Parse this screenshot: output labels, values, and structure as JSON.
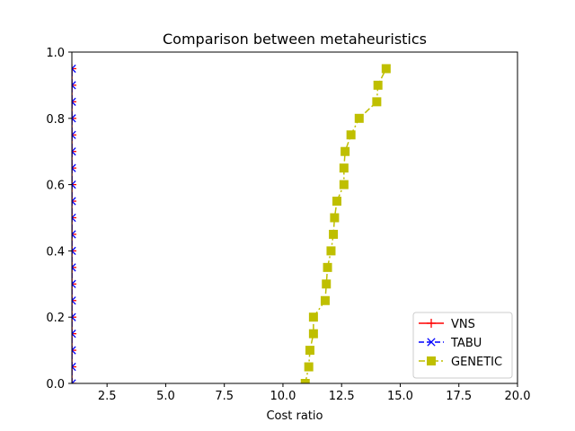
{
  "chart_data": {
    "type": "line",
    "title": "Comparison between metaheuristics",
    "xlabel": "Cost ratio",
    "ylabel": "",
    "xlim": [
      1,
      20
    ],
    "ylim": [
      0,
      1
    ],
    "xticks": [
      2.5,
      5.0,
      7.5,
      10.0,
      12.5,
      15.0,
      17.5,
      20.0
    ],
    "xtick_labels": [
      "2.5",
      "5.0",
      "7.5",
      "10.0",
      "12.5",
      "15.0",
      "17.5",
      "20.0"
    ],
    "yticks": [
      0.0,
      0.2,
      0.4,
      0.6,
      0.8,
      1.0
    ],
    "ytick_labels": [
      "0.0",
      "0.2",
      "0.4",
      "0.6",
      "0.8",
      "1.0"
    ],
    "grid": false,
    "legend_position": "lower right",
    "series": [
      {
        "name": "VNS",
        "color": "#ff0000",
        "marker": "plus",
        "line_style": "solid",
        "x": [
          1,
          1,
          1,
          1,
          1,
          1,
          1,
          1,
          1,
          1,
          1,
          1,
          1,
          1,
          1,
          1,
          1,
          1,
          1,
          1
        ],
        "y": [
          0.0,
          0.05,
          0.1,
          0.15,
          0.2,
          0.25,
          0.3,
          0.35,
          0.4,
          0.45,
          0.5,
          0.55,
          0.6,
          0.65,
          0.7,
          0.75,
          0.8,
          0.85,
          0.9,
          0.95
        ]
      },
      {
        "name": "TABU",
        "color": "#0000ff",
        "marker": "x",
        "line_style": "dashed",
        "x": [
          1,
          1,
          1,
          1,
          1,
          1,
          1,
          1,
          1,
          1,
          1,
          1,
          1,
          1,
          1,
          1,
          1,
          1,
          1,
          1
        ],
        "y": [
          0.0,
          0.05,
          0.1,
          0.15,
          0.2,
          0.25,
          0.3,
          0.35,
          0.4,
          0.45,
          0.5,
          0.55,
          0.6,
          0.65,
          0.7,
          0.75,
          0.8,
          0.85,
          0.9,
          0.95
        ]
      },
      {
        "name": "GENETIC",
        "color": "#bfbf00",
        "marker": "square",
        "line_style": "dashdot",
        "x": [
          10.95,
          11.1,
          11.15,
          11.3,
          11.3,
          11.8,
          11.85,
          11.9,
          12.05,
          12.15,
          12.2,
          12.3,
          12.6,
          12.6,
          12.65,
          12.9,
          13.25,
          14.0,
          14.05,
          14.4
        ],
        "y": [
          0.0,
          0.05,
          0.1,
          0.15,
          0.2,
          0.25,
          0.3,
          0.35,
          0.4,
          0.45,
          0.5,
          0.55,
          0.6,
          0.65,
          0.7,
          0.75,
          0.8,
          0.85,
          0.9,
          0.95
        ]
      }
    ]
  }
}
